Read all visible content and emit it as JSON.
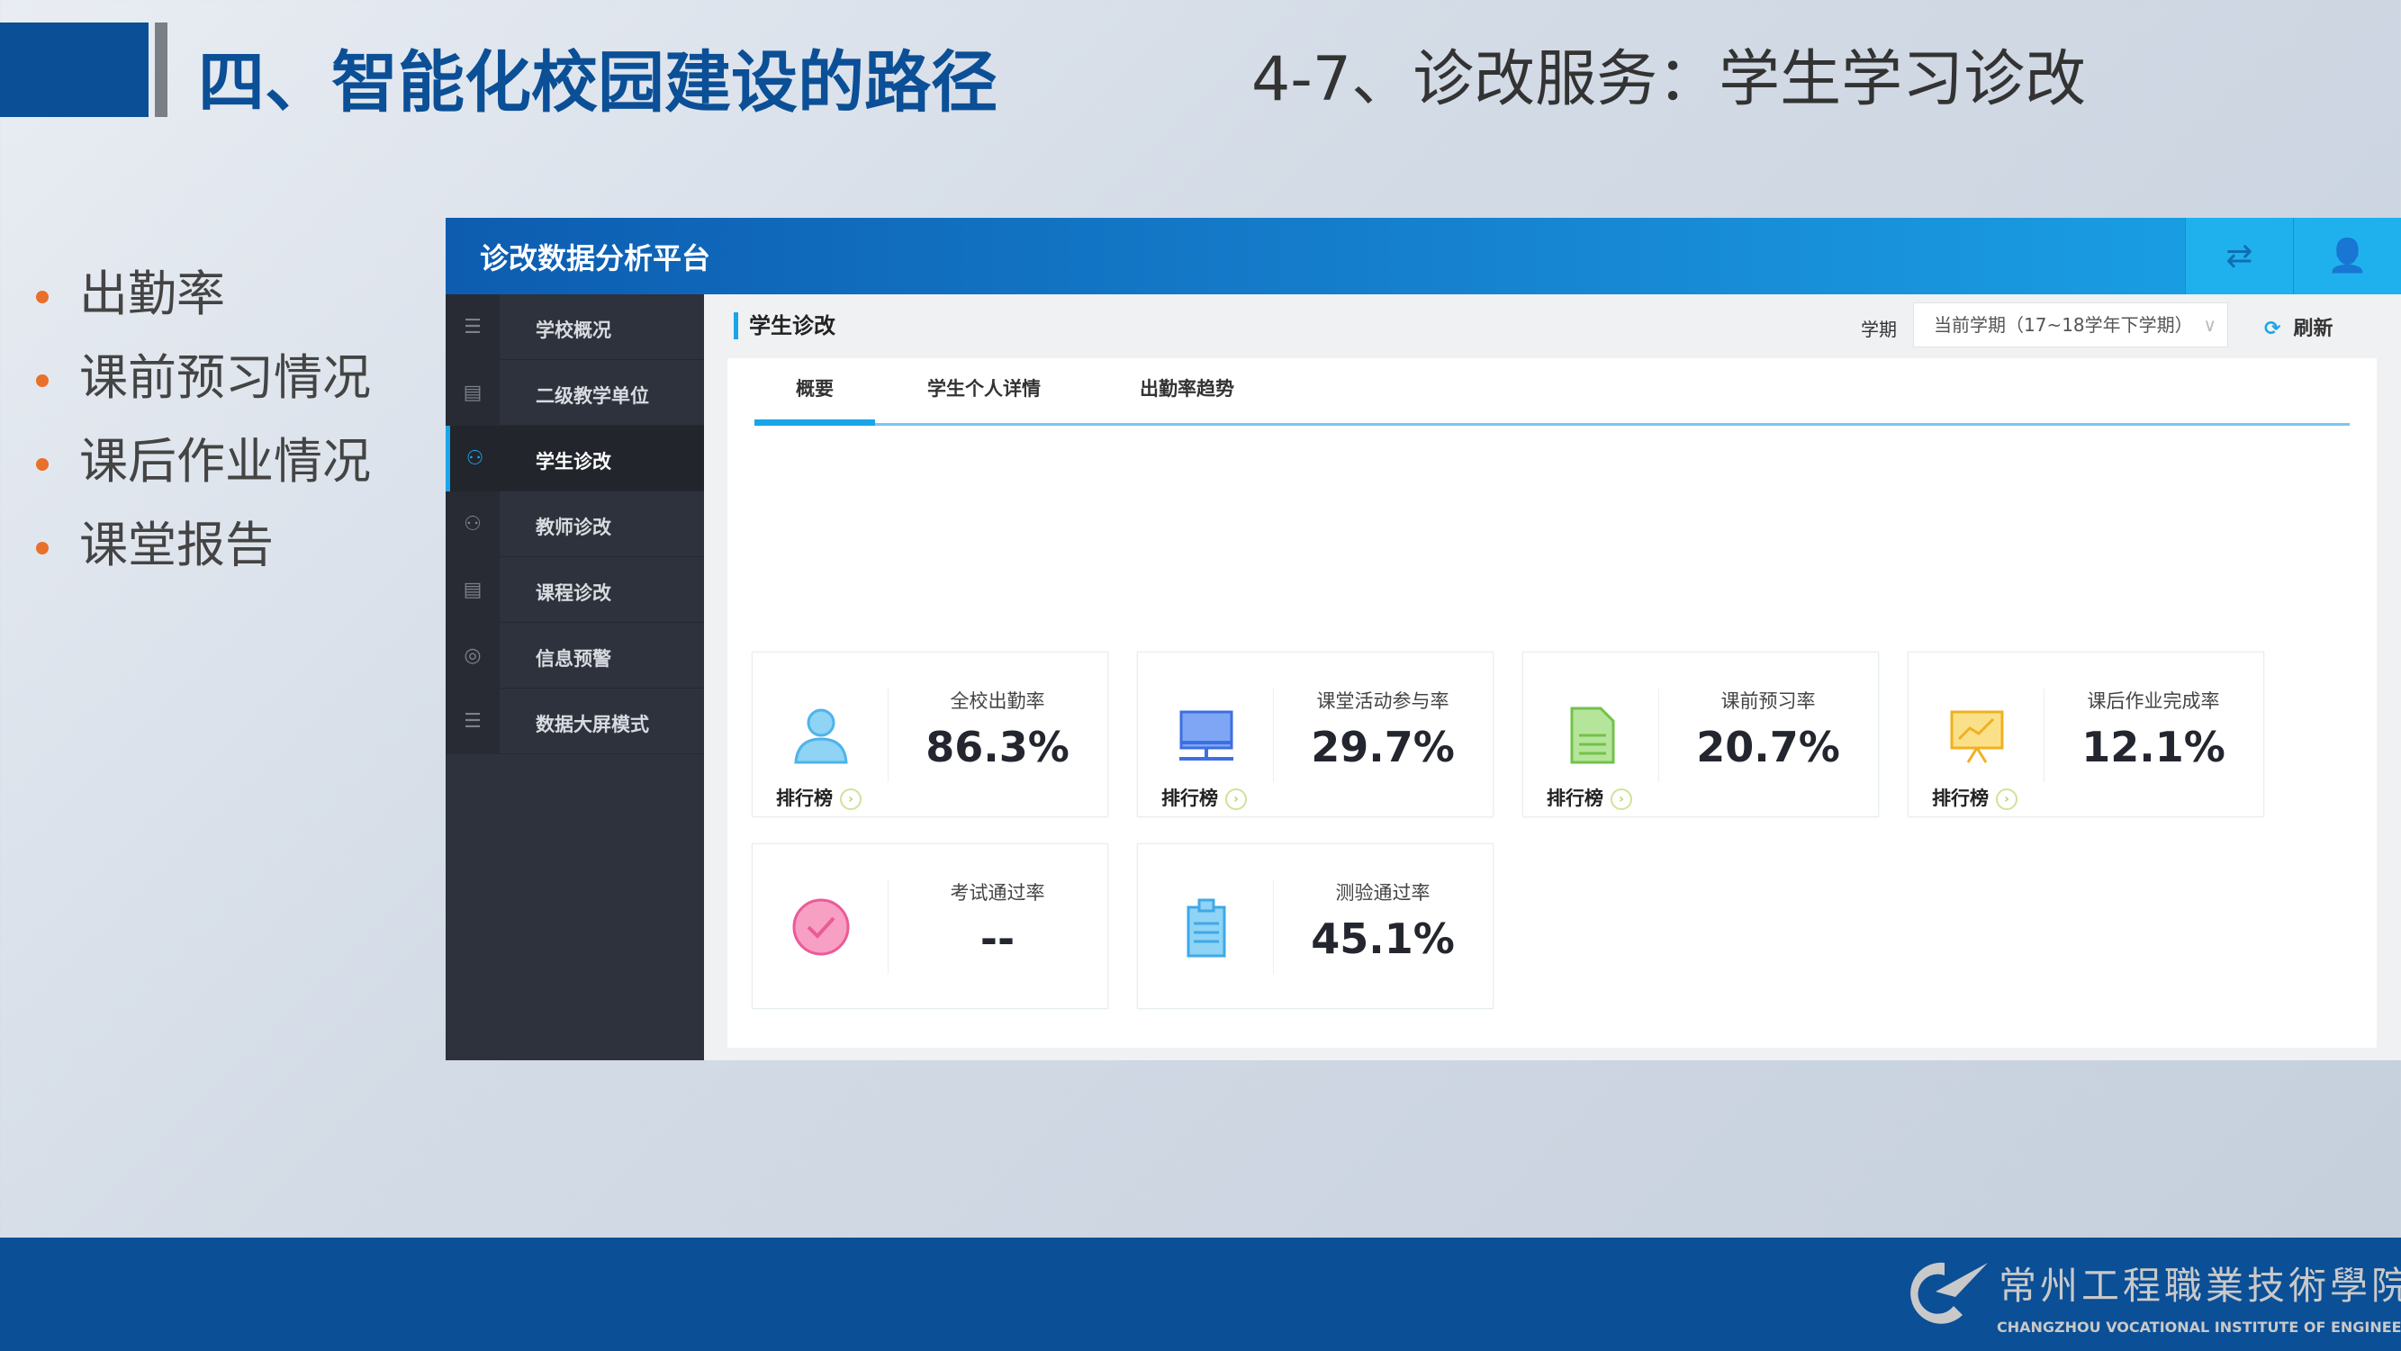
{
  "slide": {
    "title": "四、智能化校园建设的路径",
    "subtitle": "4-7、诊改服务：学生学习诊改",
    "bullets": [
      "出勤率",
      "课前预习情况",
      "课后作业情况",
      "课堂报告"
    ]
  },
  "app": {
    "title": "诊改数据分析平台",
    "header_icons": [
      "switch-icon",
      "user-icon"
    ],
    "sidebar": [
      {
        "label": "学校概况",
        "icon": "list-icon"
      },
      {
        "label": "二级教学单位",
        "icon": "building-icon"
      },
      {
        "label": "学生诊改",
        "icon": "student-icon",
        "active": true
      },
      {
        "label": "教师诊改",
        "icon": "teacher-icon"
      },
      {
        "label": "课程诊改",
        "icon": "document-icon"
      },
      {
        "label": "信息预警",
        "icon": "alert-icon"
      },
      {
        "label": "数据大屏模式",
        "icon": "screen-icon"
      }
    ],
    "breadcrumb": "学生诊改",
    "term_label": "学期",
    "term_value": "当前学期（17~18学年下学期）",
    "refresh": "刷新",
    "tabs": [
      "概要",
      "学生个人详情",
      "出勤率趋势"
    ],
    "active_tab": "概要",
    "stats": [
      {
        "label": "全校出勤率",
        "value": "86.3%",
        "rank": "排行榜",
        "icon": "person-icon",
        "color": "#5bc0f0"
      },
      {
        "label": "课堂活动参与率",
        "value": "29.7%",
        "rank": "排行榜",
        "icon": "monitor-icon",
        "color": "#4a7fe8"
      },
      {
        "label": "课前预习率",
        "value": "20.7%",
        "rank": "排行榜",
        "icon": "document-icon",
        "color": "#8fd36a"
      },
      {
        "label": "课后作业完成率",
        "value": "12.1%",
        "rank": "排行榜",
        "icon": "chart-board-icon",
        "color": "#f5c343"
      },
      {
        "label": "考试通过率",
        "value": "--",
        "icon": "check-circle-icon",
        "color": "#f07aa8"
      },
      {
        "label": "测验通过率",
        "value": "45.1%",
        "icon": "clipboard-icon",
        "color": "#5bc0f0"
      }
    ]
  },
  "footer": {
    "logo_cn": "常州工程職業技術學院",
    "logo_en": "CHANGZHOU VOCATIONAL INSTITUTE OF ENGINEERING"
  },
  "colors": {
    "brand": "#0b4f96",
    "accent": "#1aa5e8",
    "bullet": "#e8702a"
  }
}
